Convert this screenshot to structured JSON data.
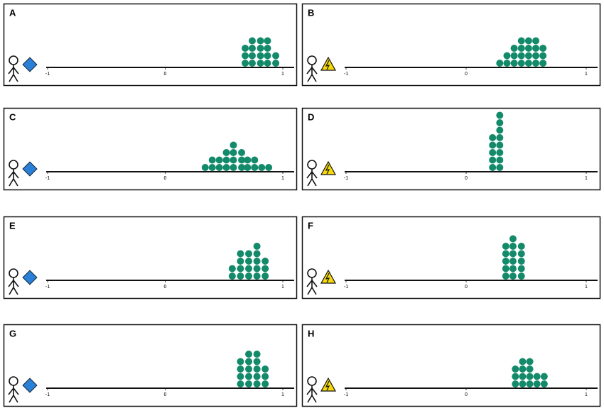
{
  "panels": [
    {
      "label": "A",
      "icon": "diamond",
      "xlim": [
        -1,
        1
      ],
      "xticks": [
        -1,
        0,
        1
      ],
      "color": "#138a6a",
      "columns": [
        {
          "x": 0.68,
          "count": 3
        },
        {
          "x": 0.74,
          "count": 4
        },
        {
          "x": 0.81,
          "count": 4
        },
        {
          "x": 0.87,
          "count": 4
        },
        {
          "x": 0.94,
          "count": 2
        }
      ]
    },
    {
      "label": "B",
      "icon": "warning",
      "xlim": [
        -1,
        1
      ],
      "xticks": [
        -1,
        0,
        1
      ],
      "color": "#138a6a",
      "columns": [
        {
          "x": 0.28,
          "count": 1
        },
        {
          "x": 0.34,
          "count": 2
        },
        {
          "x": 0.4,
          "count": 3
        },
        {
          "x": 0.46,
          "count": 4
        },
        {
          "x": 0.52,
          "count": 4
        },
        {
          "x": 0.58,
          "count": 4
        },
        {
          "x": 0.64,
          "count": 3
        }
      ]
    },
    {
      "label": "C",
      "icon": "diamond",
      "xlim": [
        -1,
        1
      ],
      "xticks": [
        -1,
        0,
        1
      ],
      "color": "#138a6a",
      "columns": [
        {
          "x": 0.34,
          "count": 1
        },
        {
          "x": 0.4,
          "count": 2
        },
        {
          "x": 0.46,
          "count": 2
        },
        {
          "x": 0.52,
          "count": 3
        },
        {
          "x": 0.58,
          "count": 4
        },
        {
          "x": 0.65,
          "count": 3
        },
        {
          "x": 0.7,
          "count": 2
        },
        {
          "x": 0.76,
          "count": 2
        },
        {
          "x": 0.82,
          "count": 1
        },
        {
          "x": 0.88,
          "count": 1
        }
      ]
    },
    {
      "label": "D",
      "icon": "warning",
      "xlim": [
        -1,
        1
      ],
      "xticks": [
        -1,
        0,
        1
      ],
      "color": "#138a6a",
      "columns": [
        {
          "x": 0.22,
          "count": 5
        },
        {
          "x": 0.28,
          "count": 8
        }
      ]
    },
    {
      "label": "E",
      "icon": "diamond",
      "xlim": [
        -1,
        1
      ],
      "xticks": [
        -1,
        0,
        1
      ],
      "color": "#138a6a",
      "columns": [
        {
          "x": 0.57,
          "count": 2
        },
        {
          "x": 0.64,
          "count": 4
        },
        {
          "x": 0.71,
          "count": 4
        },
        {
          "x": 0.78,
          "count": 5
        },
        {
          "x": 0.85,
          "count": 3
        }
      ]
    },
    {
      "label": "F",
      "icon": "warning",
      "xlim": [
        -1,
        1
      ],
      "xticks": [
        -1,
        0,
        1
      ],
      "color": "#138a6a",
      "columns": [
        {
          "x": 0.33,
          "count": 5
        },
        {
          "x": 0.39,
          "count": 6
        },
        {
          "x": 0.46,
          "count": 5
        }
      ]
    },
    {
      "label": "G",
      "icon": "diamond",
      "xlim": [
        -1,
        1
      ],
      "xticks": [
        -1,
        0,
        1
      ],
      "color": "#138a6a",
      "columns": [
        {
          "x": 0.64,
          "count": 4
        },
        {
          "x": 0.71,
          "count": 5
        },
        {
          "x": 0.78,
          "count": 5
        },
        {
          "x": 0.85,
          "count": 3
        }
      ]
    },
    {
      "label": "H",
      "icon": "warning",
      "xlim": [
        -1,
        1
      ],
      "xticks": [
        -1,
        0,
        1
      ],
      "color": "#138a6a",
      "columns": [
        {
          "x": 0.41,
          "count": 3
        },
        {
          "x": 0.47,
          "count": 4
        },
        {
          "x": 0.53,
          "count": 4
        },
        {
          "x": 0.59,
          "count": 2
        },
        {
          "x": 0.65,
          "count": 2
        }
      ]
    }
  ]
}
